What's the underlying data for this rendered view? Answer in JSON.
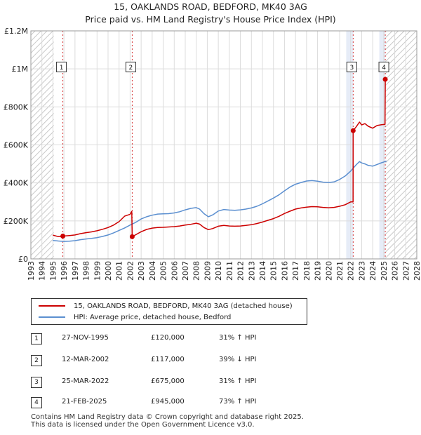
{
  "title_line1": "15, OAKLANDS ROAD, BEDFORD, MK40 3AG",
  "title_line2": "Price paid vs. HM Land Registry's House Price Index (HPI)",
  "chart_data": {
    "type": "line",
    "title": "15, OAKLANDS ROAD, BEDFORD, MK40 3AG — Price paid vs. HM Land Registry's House Price Index (HPI)",
    "xlabel": "",
    "ylabel": "",
    "xlim": [
      1993,
      2028
    ],
    "ylim": [
      0,
      1200000
    ],
    "x_ticks": [
      "1993",
      "1994",
      "1995",
      "1996",
      "1997",
      "1998",
      "1999",
      "2000",
      "2001",
      "2002",
      "2003",
      "2004",
      "2005",
      "2006",
      "2007",
      "2008",
      "2009",
      "2010",
      "2011",
      "2012",
      "2013",
      "2014",
      "2015",
      "2016",
      "2017",
      "2018",
      "2019",
      "2020",
      "2021",
      "2022",
      "2023",
      "2024",
      "2025",
      "2026",
      "2027",
      "2028"
    ],
    "y_ticks": [
      {
        "value": 0,
        "label": "£0"
      },
      {
        "value": 200000,
        "label": "£200K"
      },
      {
        "value": 400000,
        "label": "£400K"
      },
      {
        "value": 600000,
        "label": "£600K"
      },
      {
        "value": 800000,
        "label": "£800K"
      },
      {
        "value": 1000000,
        "label": "£1M"
      },
      {
        "value": 1200000,
        "label": "£1.2M"
      }
    ],
    "grid": true,
    "hatched_ranges": [
      [
        1993,
        1995.08
      ],
      [
        2025.15,
        2028
      ]
    ],
    "sale_highlights": [
      [
        2021.6,
        2022.23
      ],
      [
        2024.6,
        2025.14
      ]
    ],
    "series": [
      {
        "name": "15, OAKLANDS ROAD, BEDFORD, MK40 3AG (detached house)",
        "color": "#cc0000",
        "points": [
          [
            1995.0,
            125000
          ],
          [
            1995.5,
            117000
          ],
          [
            1995.9,
            120000
          ],
          [
            1996.5,
            123000
          ],
          [
            1997.0,
            126000
          ],
          [
            1997.5,
            133000
          ],
          [
            1998.0,
            138000
          ],
          [
            1998.5,
            142000
          ],
          [
            1999.0,
            148000
          ],
          [
            1999.5,
            156000
          ],
          [
            2000.0,
            165000
          ],
          [
            2000.5,
            178000
          ],
          [
            2001.0,
            196000
          ],
          [
            2001.5,
            225000
          ],
          [
            2002.0,
            235000
          ],
          [
            2002.15,
            250000
          ],
          [
            2002.19,
            117000
          ],
          [
            2002.5,
            127000
          ],
          [
            2003.0,
            143000
          ],
          [
            2003.5,
            155000
          ],
          [
            2004.0,
            162000
          ],
          [
            2004.5,
            165000
          ],
          [
            2005.0,
            166000
          ],
          [
            2005.5,
            168000
          ],
          [
            2006.0,
            170000
          ],
          [
            2006.5,
            173000
          ],
          [
            2007.0,
            178000
          ],
          [
            2007.5,
            182000
          ],
          [
            2008.0,
            188000
          ],
          [
            2008.3,
            183000
          ],
          [
            2008.7,
            165000
          ],
          [
            2009.1,
            154000
          ],
          [
            2009.5,
            160000
          ],
          [
            2010.0,
            172000
          ],
          [
            2010.5,
            176000
          ],
          [
            2011.0,
            173000
          ],
          [
            2011.5,
            172000
          ],
          [
            2012.0,
            173000
          ],
          [
            2012.5,
            176000
          ],
          [
            2013.0,
            180000
          ],
          [
            2013.5,
            186000
          ],
          [
            2014.0,
            194000
          ],
          [
            2014.5,
            203000
          ],
          [
            2015.0,
            212000
          ],
          [
            2015.5,
            224000
          ],
          [
            2016.0,
            239000
          ],
          [
            2016.5,
            251000
          ],
          [
            2017.0,
            262000
          ],
          [
            2017.5,
            268000
          ],
          [
            2018.0,
            272000
          ],
          [
            2018.5,
            275000
          ],
          [
            2019.0,
            274000
          ],
          [
            2019.5,
            271000
          ],
          [
            2020.0,
            269000
          ],
          [
            2020.5,
            271000
          ],
          [
            2021.0,
            277000
          ],
          [
            2021.5,
            285000
          ],
          [
            2022.0,
            300000
          ],
          [
            2022.22,
            300000
          ],
          [
            2022.23,
            675000
          ],
          [
            2022.5,
            695000
          ],
          [
            2022.8,
            720000
          ],
          [
            2023.0,
            705000
          ],
          [
            2023.3,
            712000
          ],
          [
            2023.6,
            698000
          ],
          [
            2024.0,
            688000
          ],
          [
            2024.4,
            702000
          ],
          [
            2024.8,
            706000
          ],
          [
            2025.12,
            708000
          ],
          [
            2025.14,
            945000
          ],
          [
            2025.25,
            950000
          ]
        ]
      },
      {
        "name": "HPI: Average price, detached house, Bedford",
        "color": "#5b8fd0",
        "points": [
          [
            1995.0,
            97000
          ],
          [
            1995.5,
            94000
          ],
          [
            1996.0,
            92000
          ],
          [
            1996.5,
            93000
          ],
          [
            1997.0,
            96000
          ],
          [
            1997.5,
            101000
          ],
          [
            1998.0,
            105000
          ],
          [
            1998.5,
            108000
          ],
          [
            1999.0,
            112000
          ],
          [
            1999.5,
            118000
          ],
          [
            2000.0,
            126000
          ],
          [
            2000.5,
            137000
          ],
          [
            2001.0,
            150000
          ],
          [
            2001.5,
            163000
          ],
          [
            2002.0,
            178000
          ],
          [
            2002.5,
            192000
          ],
          [
            2003.0,
            210000
          ],
          [
            2003.5,
            222000
          ],
          [
            2004.0,
            230000
          ],
          [
            2004.5,
            236000
          ],
          [
            2005.0,
            237000
          ],
          [
            2005.5,
            238000
          ],
          [
            2006.0,
            242000
          ],
          [
            2006.5,
            248000
          ],
          [
            2007.0,
            258000
          ],
          [
            2007.5,
            266000
          ],
          [
            2008.0,
            270000
          ],
          [
            2008.3,
            262000
          ],
          [
            2008.7,
            238000
          ],
          [
            2009.1,
            222000
          ],
          [
            2009.5,
            232000
          ],
          [
            2010.0,
            252000
          ],
          [
            2010.5,
            260000
          ],
          [
            2011.0,
            257000
          ],
          [
            2011.5,
            256000
          ],
          [
            2012.0,
            258000
          ],
          [
            2012.5,
            262000
          ],
          [
            2013.0,
            268000
          ],
          [
            2013.5,
            277000
          ],
          [
            2014.0,
            290000
          ],
          [
            2014.5,
            305000
          ],
          [
            2015.0,
            320000
          ],
          [
            2015.5,
            337000
          ],
          [
            2016.0,
            358000
          ],
          [
            2016.5,
            378000
          ],
          [
            2017.0,
            393000
          ],
          [
            2017.5,
            402000
          ],
          [
            2018.0,
            410000
          ],
          [
            2018.5,
            412000
          ],
          [
            2019.0,
            409000
          ],
          [
            2019.5,
            404000
          ],
          [
            2020.0,
            402000
          ],
          [
            2020.5,
            405000
          ],
          [
            2021.0,
            418000
          ],
          [
            2021.5,
            436000
          ],
          [
            2022.0,
            462000
          ],
          [
            2022.5,
            495000
          ],
          [
            2022.8,
            512000
          ],
          [
            2023.0,
            505000
          ],
          [
            2023.3,
            500000
          ],
          [
            2023.6,
            492000
          ],
          [
            2024.0,
            488000
          ],
          [
            2024.4,
            497000
          ],
          [
            2024.8,
            506000
          ],
          [
            2025.0,
            510000
          ],
          [
            2025.25,
            515000
          ]
        ]
      }
    ],
    "sales": [
      {
        "label": "1",
        "x": 1995.9,
        "price": 120000,
        "box_y": 1010000
      },
      {
        "label": "2",
        "x": 2002.19,
        "price": 117000,
        "box_y": 1010000
      },
      {
        "label": "3",
        "x": 2022.23,
        "price": 675000,
        "box_y": 1010000
      },
      {
        "label": "4",
        "x": 2025.14,
        "price": 945000,
        "box_y": 1010000
      }
    ]
  },
  "legend": {
    "property_label": "15, OAKLANDS ROAD, BEDFORD, MK40 3AG (detached house)",
    "hpi_label": "HPI: Average price, detached house, Bedford"
  },
  "transactions": [
    {
      "num": "1",
      "date": "27-NOV-1995",
      "price": "£120,000",
      "hpi": "31% ↑ HPI"
    },
    {
      "num": "2",
      "date": "12-MAR-2002",
      "price": "£117,000",
      "hpi": "39% ↓ HPI"
    },
    {
      "num": "3",
      "date": "25-MAR-2022",
      "price": "£675,000",
      "hpi": "31% ↑ HPI"
    },
    {
      "num": "4",
      "date": "21-FEB-2025",
      "price": "£945,000",
      "hpi": "73% ↑ HPI"
    }
  ],
  "footer": {
    "line1": "Contains HM Land Registry data © Crown copyright and database right 2025.",
    "line2": "This data is licensed under the Open Government Licence v3.0."
  }
}
